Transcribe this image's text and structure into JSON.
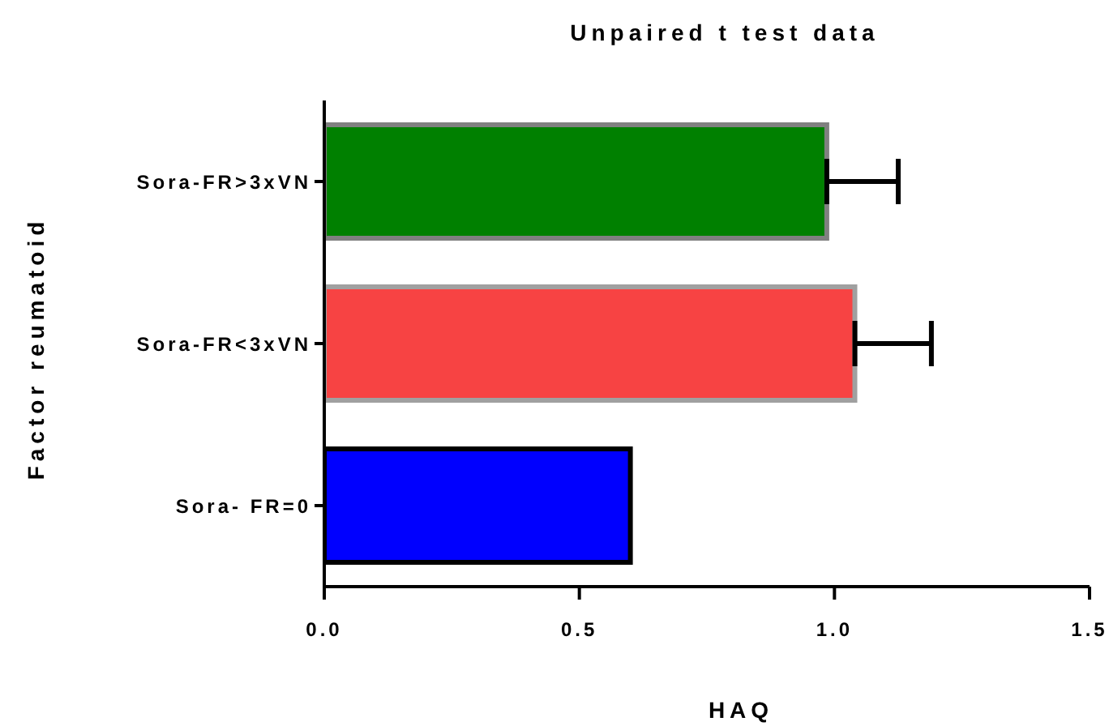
{
  "chart_data": {
    "type": "bar",
    "orientation": "horizontal",
    "title": "Unpaired t test data",
    "xlabel": "HAQ",
    "ylabel": "Factor reumatoid",
    "categories": [
      "Sora-FR>3xVN",
      "Sora-FR<3xVN",
      "Sora- FR=0"
    ],
    "values": [
      0.985,
      1.04,
      0.6
    ],
    "colors": [
      "#008000",
      "#f74343",
      "#0000ff"
    ],
    "errors": [
      [
        0.985,
        1.125
      ],
      [
        1.04,
        1.19
      ],
      null
    ],
    "xlim": [
      0,
      1.5
    ],
    "xticks": [
      {
        "value": 0,
        "label": "0.0"
      },
      {
        "value": 0.5,
        "label": "0.5"
      },
      {
        "value": 1,
        "label": "1.0"
      },
      {
        "value": 1.5,
        "label": "1.5"
      }
    ],
    "grid": false,
    "legend": false
  }
}
